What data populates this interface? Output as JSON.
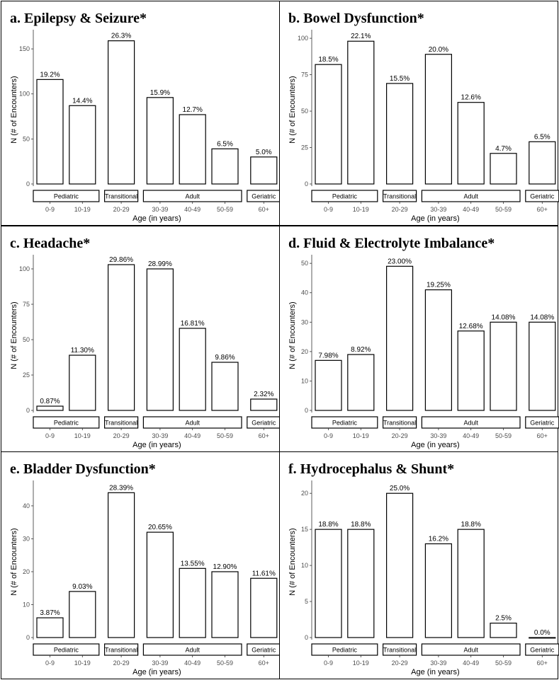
{
  "chart_data": [
    {
      "type": "bar",
      "title": "a. Epilepsy & Seizure*",
      "xlabel": "Age (in years)",
      "ylabel": "N (# of Encounters)",
      "categories": [
        "0-9",
        "10-19",
        "20-29",
        "30-39",
        "40-49",
        "50-59",
        "60+"
      ],
      "values": [
        116,
        87,
        159,
        96,
        77,
        39,
        30
      ],
      "labels": [
        "19.2%",
        "14.4%",
        "26.3%",
        "15.9%",
        "12.7%",
        "6.5%",
        "5.0%"
      ],
      "yticks": [
        "0",
        "50",
        "100",
        "150"
      ],
      "ylim": [
        0,
        165
      ],
      "groups": [
        {
          "name": "Pediatric",
          "categories": [
            "0-9",
            "10-19"
          ]
        },
        {
          "name": "Transitional",
          "categories": [
            "20-29"
          ]
        },
        {
          "name": "Adult",
          "categories": [
            "30-39",
            "40-49",
            "50-59"
          ]
        },
        {
          "name": "Geriatric",
          "categories": [
            "60+"
          ]
        }
      ]
    },
    {
      "type": "bar",
      "title": "b. Bowel Dysfunction*",
      "xlabel": "Age (in years)",
      "ylabel": "N (# of Encounters)",
      "categories": [
        "0-9",
        "10-19",
        "20-29",
        "30-39",
        "40-49",
        "50-59",
        "60+"
      ],
      "values": [
        82,
        98,
        69,
        89,
        56,
        21,
        29
      ],
      "labels": [
        "18.5%",
        "22.1%",
        "15.5%",
        "20.0%",
        "12.6%",
        "4.7%",
        "6.5%"
      ],
      "yticks": [
        "0",
        "25",
        "50",
        "75",
        "100"
      ],
      "ylim": [
        0,
        102
      ],
      "groups": [
        {
          "name": "Pediatric",
          "categories": [
            "0-9",
            "10-19"
          ]
        },
        {
          "name": "Transitional",
          "categories": [
            "20-29"
          ]
        },
        {
          "name": "Adult",
          "categories": [
            "30-39",
            "40-49",
            "50-59"
          ]
        },
        {
          "name": "Geriatric",
          "categories": [
            "60+"
          ]
        }
      ]
    },
    {
      "type": "bar",
      "title": "c. Headache*",
      "xlabel": "Age (in years)",
      "ylabel": "N (# of Encounters)",
      "categories": [
        "0-9",
        "10-19",
        "20-29",
        "30-39",
        "40-49",
        "50-59",
        "60+"
      ],
      "values": [
        3,
        39,
        103,
        100,
        58,
        34,
        8
      ],
      "labels": [
        "0.87%",
        "11.30%",
        "29.86%",
        "28.99%",
        "16.81%",
        "9.86%",
        "2.32%"
      ],
      "yticks": [
        "0",
        "25",
        "50",
        "75",
        "100"
      ],
      "ylim": [
        0,
        106
      ],
      "groups": [
        {
          "name": "Pediatric",
          "categories": [
            "0-9",
            "10-19"
          ]
        },
        {
          "name": "Transitional",
          "categories": [
            "20-29"
          ]
        },
        {
          "name": "Adult",
          "categories": [
            "30-39",
            "40-49",
            "50-59"
          ]
        },
        {
          "name": "Geriatric",
          "categories": [
            "60+"
          ]
        }
      ]
    },
    {
      "type": "bar",
      "title": "d. Fluid & Electrolyte Imbalance*",
      "xlabel": "Age (in years)",
      "ylabel": "N (# of Encounters)",
      "categories": [
        "0-9",
        "10-19",
        "20-29",
        "30-39",
        "40-49",
        "50-59",
        "60+"
      ],
      "values": [
        17,
        19,
        49,
        41,
        27,
        30,
        30
      ],
      "labels": [
        "7.98%",
        "8.92%",
        "23.00%",
        "19.25%",
        "12.68%",
        "14.08%",
        "14.08%"
      ],
      "yticks": [
        "0",
        "10",
        "20",
        "30",
        "40",
        "50"
      ],
      "ylim": [
        0,
        51
      ],
      "groups": [
        {
          "name": "Pediatric",
          "categories": [
            "0-9",
            "10-19"
          ]
        },
        {
          "name": "Transitional",
          "categories": [
            "20-29"
          ]
        },
        {
          "name": "Adult",
          "categories": [
            "30-39",
            "40-49",
            "50-59"
          ]
        },
        {
          "name": "Geriatric",
          "categories": [
            "60+"
          ]
        }
      ]
    },
    {
      "type": "bar",
      "title": "e. Bladder Dysfunction*",
      "xlabel": "Age (in years)",
      "ylabel": "N (# of Encounters)",
      "categories": [
        "0-9",
        "10-19",
        "20-29",
        "30-39",
        "40-49",
        "50-59",
        "60+"
      ],
      "values": [
        6,
        14,
        44,
        32,
        21,
        20,
        18
      ],
      "labels": [
        "3.87%",
        "9.03%",
        "28.39%",
        "20.65%",
        "13.55%",
        "12.90%",
        "11.61%"
      ],
      "yticks": [
        "0",
        "10",
        "20",
        "30",
        "40"
      ],
      "ylim": [
        0,
        46
      ],
      "groups": [
        {
          "name": "Pediatric",
          "categories": [
            "0-9",
            "10-19"
          ]
        },
        {
          "name": "Transitional",
          "categories": [
            "20-29"
          ]
        },
        {
          "name": "Adult",
          "categories": [
            "30-39",
            "40-49",
            "50-59"
          ]
        },
        {
          "name": "Geriatric",
          "categories": [
            "60+"
          ]
        }
      ]
    },
    {
      "type": "bar",
      "title": "f. Hydrocephalus & Shunt*",
      "xlabel": "Age (in years)",
      "ylabel": "N (# of Encounters)",
      "categories": [
        "0-9",
        "10-19",
        "20-29",
        "30-39",
        "40-49",
        "50-59",
        "60+"
      ],
      "values": [
        15,
        15,
        20,
        13,
        15,
        2,
        0
      ],
      "labels": [
        "18.8%",
        "18.8%",
        "25.0%",
        "16.2%",
        "18.8%",
        "2.5%",
        "0.0%"
      ],
      "yticks": [
        "0",
        "5",
        "10",
        "15",
        "20"
      ],
      "ylim": [
        0,
        21
      ],
      "groups": [
        {
          "name": "Pediatric",
          "categories": [
            "0-9",
            "10-19"
          ]
        },
        {
          "name": "Transitional",
          "categories": [
            "20-29"
          ]
        },
        {
          "name": "Adult",
          "categories": [
            "30-39",
            "40-49",
            "50-59"
          ]
        },
        {
          "name": "Geriatric",
          "categories": [
            "60+"
          ]
        }
      ]
    }
  ]
}
